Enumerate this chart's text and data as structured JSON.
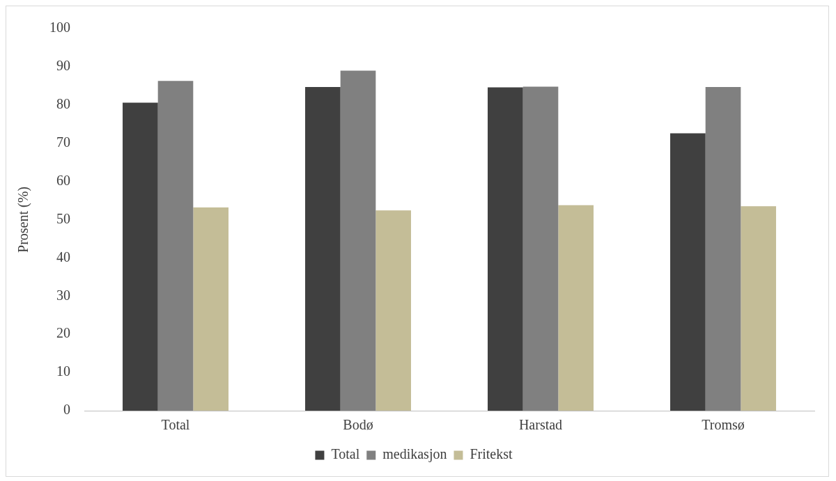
{
  "chart_data": {
    "type": "bar",
    "ylabel": "Prosent (%)",
    "categories": [
      "Total",
      "Bodø",
      "Harstad",
      "Tromsø"
    ],
    "series": [
      {
        "name": "Total",
        "color": "#404040",
        "values": [
          80.6,
          84.7,
          84.6,
          72.6
        ]
      },
      {
        "name": "medikasjon",
        "color": "#808080",
        "values": [
          86.3,
          89.0,
          84.8,
          84.7
        ]
      },
      {
        "name": "Fritekst",
        "color": "#c4bd97",
        "values": [
          53.2,
          52.4,
          53.8,
          53.5
        ]
      }
    ],
    "ylim": [
      0,
      100
    ],
    "yticks": [
      0,
      10,
      20,
      30,
      40,
      50,
      60,
      70,
      80,
      90,
      100
    ],
    "grid": false,
    "legend": "bottom"
  }
}
